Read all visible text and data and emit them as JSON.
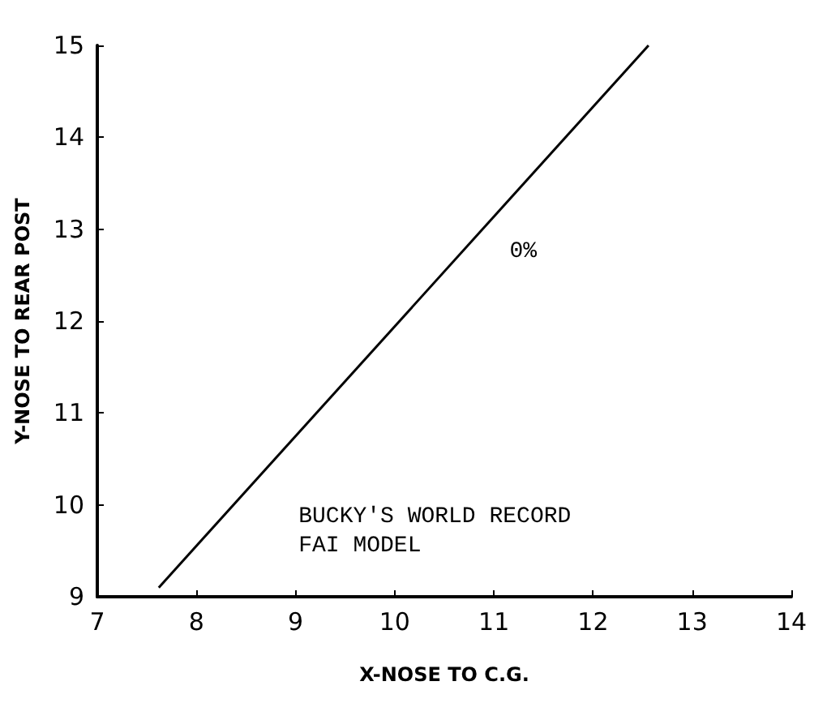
{
  "chart_data": {
    "type": "line",
    "xlabel": "X-NOSE TO C.G.",
    "ylabel": "Y-NOSE TO REAR POST",
    "x": [
      7.62,
      12.56
    ],
    "series": [
      {
        "name": "0%",
        "color": "#000000",
        "values": [
          9.1,
          15.0
        ]
      }
    ],
    "xlim": [
      7,
      14
    ],
    "xticks": [
      7,
      8,
      9,
      10,
      11,
      12,
      13,
      14
    ],
    "ylim": [
      9,
      15
    ],
    "yticks": [
      9,
      10,
      11,
      12,
      13,
      14,
      15
    ],
    "grid": false,
    "marker": "none",
    "line_style": "solid",
    "annotations": [
      "BUCKY'S WORLD RECORD\nFAI MODEL"
    ]
  }
}
